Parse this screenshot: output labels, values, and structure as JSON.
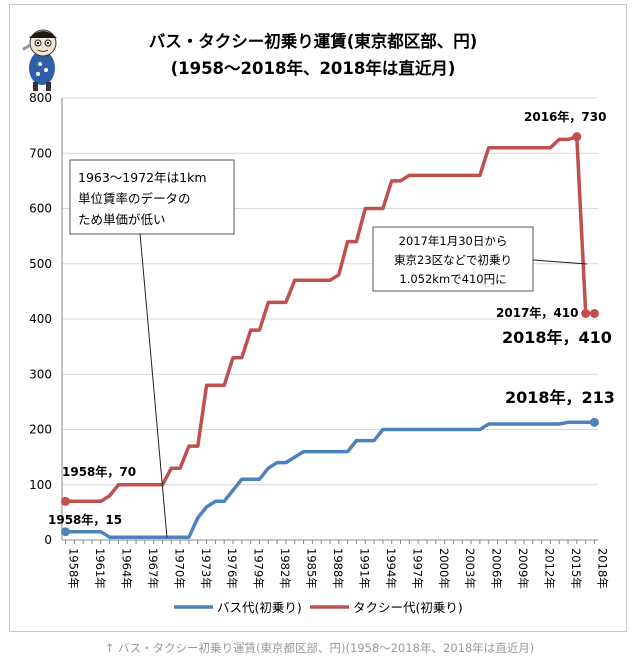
{
  "caption": "↑ バス・タクシー初乗り運賃(東京都区部、円)(1958〜2018年、2018年は直近月)",
  "colors": {
    "bus": "#4f81bd",
    "taxi": "#c0504d",
    "grid": "#d9d9d9",
    "axis": "#888888"
  },
  "mascot_icon": "cartoon-mascot-icon",
  "chart_data": {
    "type": "line",
    "title": "バス・タクシー初乗り運賃(東京都区部、円)",
    "subtitle": "(1958〜2018年、2018年は直近月)",
    "xlabel": "",
    "ylabel": "",
    "ylim": [
      0,
      800
    ],
    "yticks": [
      0,
      100,
      200,
      300,
      400,
      500,
      600,
      700,
      800
    ],
    "grid": true,
    "legend_position": "bottom",
    "x_tick_labels": [
      "1958年",
      "1961年",
      "1964年",
      "1967年",
      "1970年",
      "1973年",
      "1976年",
      "1979年",
      "1982年",
      "1985年",
      "1988年",
      "1991年",
      "1994年",
      "1997年",
      "2000年",
      "2003年",
      "2006年",
      "2009年",
      "2012年",
      "2015年",
      "2018年"
    ],
    "series": [
      {
        "name": "バス代(初乗り)",
        "color": "#4f81bd",
        "points": [
          [
            1958,
            15
          ],
          [
            1962,
            15
          ],
          [
            1963,
            5
          ],
          [
            1971,
            5
          ],
          [
            1972,
            5
          ],
          [
            1973,
            40
          ],
          [
            1974,
            60
          ],
          [
            1975,
            70
          ],
          [
            1976,
            70
          ],
          [
            1978,
            110
          ],
          [
            1980,
            110
          ],
          [
            1981,
            130
          ],
          [
            1982,
            140
          ],
          [
            1983,
            140
          ],
          [
            1984,
            150
          ],
          [
            1985,
            160
          ],
          [
            1987,
            160
          ],
          [
            1990,
            160
          ],
          [
            1991,
            180
          ],
          [
            1993,
            180
          ],
          [
            1994,
            200
          ],
          [
            1997,
            200
          ],
          [
            2000,
            200
          ],
          [
            2005,
            200
          ],
          [
            2006,
            210
          ],
          [
            2008,
            210
          ],
          [
            2014,
            210
          ],
          [
            2015,
            213
          ],
          [
            2016,
            213
          ],
          [
            2017,
            213
          ],
          [
            2018,
            213
          ]
        ]
      },
      {
        "name": "タクシー代(初乗り)",
        "color": "#c0504d",
        "points": [
          [
            1958,
            70
          ],
          [
            1962,
            70
          ],
          [
            1963,
            80
          ],
          [
            1964,
            100
          ],
          [
            1969,
            100
          ],
          [
            1970,
            130
          ],
          [
            1971,
            130
          ],
          [
            1972,
            170
          ],
          [
            1973,
            170
          ],
          [
            1974,
            280
          ],
          [
            1976,
            280
          ],
          [
            1977,
            330
          ],
          [
            1978,
            330
          ],
          [
            1979,
            380
          ],
          [
            1980,
            380
          ],
          [
            1981,
            430
          ],
          [
            1983,
            430
          ],
          [
            1984,
            470
          ],
          [
            1988,
            470
          ],
          [
            1989,
            480
          ],
          [
            1990,
            540
          ],
          [
            1991,
            540
          ],
          [
            1992,
            600
          ],
          [
            1994,
            600
          ],
          [
            1995,
            650
          ],
          [
            1996,
            650
          ],
          [
            1997,
            660
          ],
          [
            2005,
            660
          ],
          [
            2006,
            710
          ],
          [
            2013,
            710
          ],
          [
            2014,
            725
          ],
          [
            2015,
            725
          ],
          [
            2016,
            730
          ],
          [
            2017,
            410
          ],
          [
            2018,
            410
          ]
        ]
      }
    ],
    "annotations": {
      "bus_start": "1958年，15",
      "taxi_start": "1958年，70",
      "taxi_2016": "2016年，730",
      "taxi_2017": "2017年，410",
      "taxi_2018": "2018年，410",
      "bus_2018": "2018年，213",
      "note_1km": [
        "1963〜1972年は1km",
        "単位賃率のデータの",
        "ため単価が低い"
      ],
      "note_2017": [
        "2017年1月30日から",
        "東京23区などで初乗り",
        "1.052kmで410円に"
      ]
    }
  }
}
